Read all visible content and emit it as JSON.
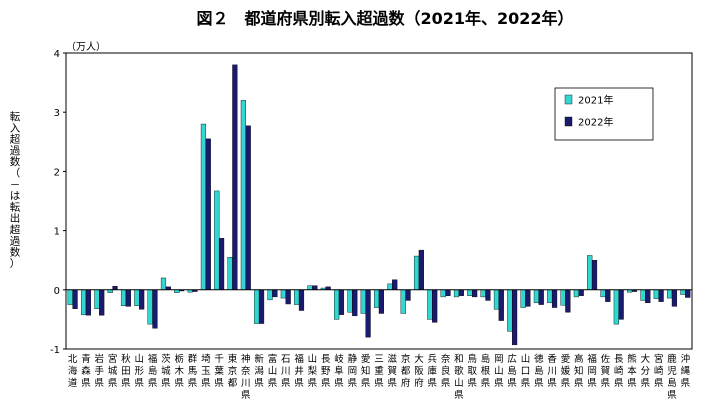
{
  "chart_data": {
    "type": "bar",
    "title": "図２　都道府県別転入超過数（2021年、2022年）",
    "unit_label": "（万人）",
    "ylabel": "転入超過数（－は転出超過数）",
    "ylim": [
      -1,
      4
    ],
    "yticks": [
      "4",
      "3",
      "2",
      "1",
      "0",
      "-1"
    ],
    "grid": false,
    "legend_position": "upper-right",
    "categories": [
      "北海道",
      "青森県",
      "岩手県",
      "宮城県",
      "秋田県",
      "山形県",
      "福島県",
      "茨城県",
      "栃木県",
      "群馬県",
      "埼玉県",
      "千葉県",
      "東京都",
      "神奈川県",
      "新潟県",
      "富山県",
      "石川県",
      "福井県",
      "山梨県",
      "長野県",
      "岐阜県",
      "静岡県",
      "愛知県",
      "三重県",
      "滋賀県",
      "京都府",
      "大阪府",
      "兵庫県",
      "奈良県",
      "和歌山県",
      "鳥取県",
      "島根県",
      "岡山県",
      "広島県",
      "山口県",
      "徳島県",
      "香川県",
      "愛媛県",
      "高知県",
      "福岡県",
      "佐賀県",
      "長崎県",
      "熊本県",
      "大分県",
      "宮崎県",
      "鹿児島県",
      "沖縄県"
    ],
    "series": [
      {
        "name": "2021年",
        "color": "#33d6d0",
        "values": [
          -0.25,
          -0.42,
          -0.32,
          -0.05,
          -0.27,
          -0.27,
          -0.58,
          0.2,
          -0.05,
          -0.04,
          2.8,
          1.67,
          0.55,
          3.2,
          -0.57,
          -0.17,
          -0.14,
          -0.25,
          0.07,
          0.03,
          -0.5,
          -0.38,
          -0.4,
          -0.3,
          0.1,
          -0.4,
          0.57,
          -0.5,
          -0.12,
          -0.12,
          -0.1,
          -0.12,
          -0.33,
          -0.7,
          -0.3,
          -0.22,
          -0.22,
          -0.26,
          -0.12,
          0.58,
          -0.12,
          -0.58,
          -0.04,
          -0.18,
          -0.15,
          -0.14,
          -0.08
        ]
      },
      {
        "name": "2022年",
        "color": "#1a1a6e",
        "values": [
          -0.32,
          -0.43,
          -0.43,
          0.06,
          -0.28,
          -0.33,
          -0.65,
          0.05,
          -0.02,
          -0.03,
          2.55,
          0.87,
          3.8,
          2.77,
          -0.57,
          -0.12,
          -0.24,
          -0.35,
          0.07,
          0.05,
          -0.42,
          -0.44,
          -0.8,
          -0.4,
          0.17,
          -0.18,
          0.67,
          -0.55,
          -0.1,
          -0.1,
          -0.12,
          -0.18,
          -0.52,
          -0.93,
          -0.28,
          -0.25,
          -0.3,
          -0.38,
          -0.1,
          0.5,
          -0.2,
          -0.5,
          -0.03,
          -0.22,
          -0.2,
          -0.28,
          -0.13
        ]
      }
    ]
  }
}
